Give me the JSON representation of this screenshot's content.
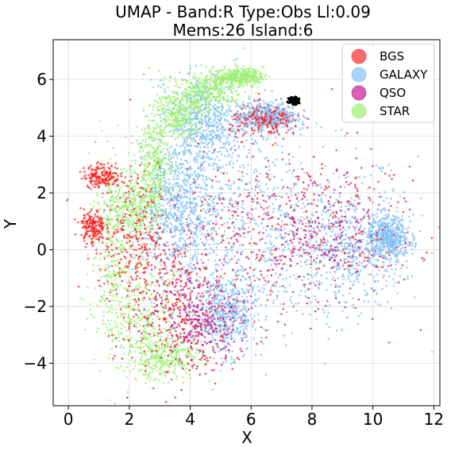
{
  "chart_data": {
    "type": "scatter",
    "title_line1": "UMAP  -  Band:R Type:Obs Ll:0.09",
    "title_line2": "Mems:26 Island:6",
    "xlabel": "X",
    "ylabel": "Y",
    "xlim": [
      -0.5,
      12.2
    ],
    "ylim": [
      -5.5,
      7.4
    ],
    "xticks": [
      0,
      2,
      4,
      6,
      8,
      10,
      12
    ],
    "yticks": [
      -4,
      -2,
      0,
      2,
      4,
      6
    ],
    "xtick_labels": [
      "0",
      "2",
      "4",
      "6",
      "8",
      "10",
      "12"
    ],
    "ytick_labels": [
      "−4",
      "−2",
      "0",
      "2",
      "4",
      "6"
    ],
    "grid": true,
    "legend_position": "top-right",
    "series": [
      {
        "name": "BGS",
        "color": "#ff2020",
        "regions": [
          {
            "cx": 2.0,
            "cy": 0.5,
            "sx": 0.5,
            "sy": 1.2
          },
          {
            "cx": 3.0,
            "cy": -1.0,
            "sx": 0.9,
            "sy": 1.3
          },
          {
            "cx": 4.0,
            "cy": -2.5,
            "sx": 0.8,
            "sy": 1.0
          },
          {
            "cx": 6.0,
            "cy": 0.3,
            "sx": 2.0,
            "sy": 1.4
          },
          {
            "cx": 8.0,
            "cy": 1.0,
            "sx": 1.8,
            "sy": 1.3
          },
          {
            "cx": 1.1,
            "cy": 2.6,
            "sx": 0.3,
            "sy": 0.2
          },
          {
            "cx": 0.8,
            "cy": 0.8,
            "sx": 0.2,
            "sy": 0.3
          },
          {
            "cx": 6.5,
            "cy": 4.5,
            "sx": 0.6,
            "sy": 0.3
          }
        ]
      },
      {
        "name": "GALAXY",
        "color": "#80bdf5",
        "regions": [
          {
            "cx": 7.0,
            "cy": 0.5,
            "sx": 2.2,
            "sy": 1.6
          },
          {
            "cx": 9.0,
            "cy": 0.0,
            "sx": 1.0,
            "sy": 1.0
          },
          {
            "cx": 4.5,
            "cy": 1.5,
            "sx": 1.2,
            "sy": 1.8
          },
          {
            "cx": 4.5,
            "cy": 4.5,
            "sx": 0.6,
            "sy": 0.8
          },
          {
            "cx": 6.5,
            "cy": 4.7,
            "sx": 0.5,
            "sy": 0.25
          },
          {
            "cx": 10.5,
            "cy": 0.4,
            "sx": 0.35,
            "sy": 0.4
          },
          {
            "cx": 5.2,
            "cy": -2.3,
            "sx": 0.5,
            "sy": 0.7
          },
          {
            "cx": 3.5,
            "cy": 1.5,
            "sx": 0.6,
            "sy": 1.0
          }
        ]
      },
      {
        "name": "QSO",
        "color": "#c0188a",
        "regions": [
          {
            "cx": 6.5,
            "cy": 0.2,
            "sx": 2.0,
            "sy": 1.3
          },
          {
            "cx": 8.5,
            "cy": 0.8,
            "sx": 1.2,
            "sy": 1.2
          },
          {
            "cx": 3.5,
            "cy": -2.0,
            "sx": 0.7,
            "sy": 1.2
          },
          {
            "cx": 4.5,
            "cy": -2.8,
            "sx": 0.5,
            "sy": 0.6
          }
        ]
      },
      {
        "name": "STAR",
        "color": "#99f070",
        "regions": [
          {
            "cx": 1.5,
            "cy": 0.0,
            "sx": 0.4,
            "sy": 1.6
          },
          {
            "cx": 2.5,
            "cy": -2.5,
            "sx": 0.7,
            "sy": 0.9
          },
          {
            "cx": 3.2,
            "cy": -3.8,
            "sx": 0.6,
            "sy": 0.4
          },
          {
            "cx": 2.8,
            "cy": 3.0,
            "sx": 0.3,
            "sy": 0.8
          },
          {
            "cx": 3.6,
            "cy": 4.8,
            "sx": 0.4,
            "sy": 0.5
          },
          {
            "cx": 4.6,
            "cy": 5.6,
            "sx": 0.6,
            "sy": 0.35
          },
          {
            "cx": 5.6,
            "cy": 6.1,
            "sx": 0.4,
            "sy": 0.15
          },
          {
            "cx": 2.2,
            "cy": 1.5,
            "sx": 0.5,
            "sy": 0.6
          }
        ]
      }
    ],
    "highlight_cluster": {
      "name": "Island 6",
      "color": "#000000",
      "cx": 7.4,
      "cy": 5.25,
      "sx": 0.08,
      "sy": 0.06
    }
  }
}
